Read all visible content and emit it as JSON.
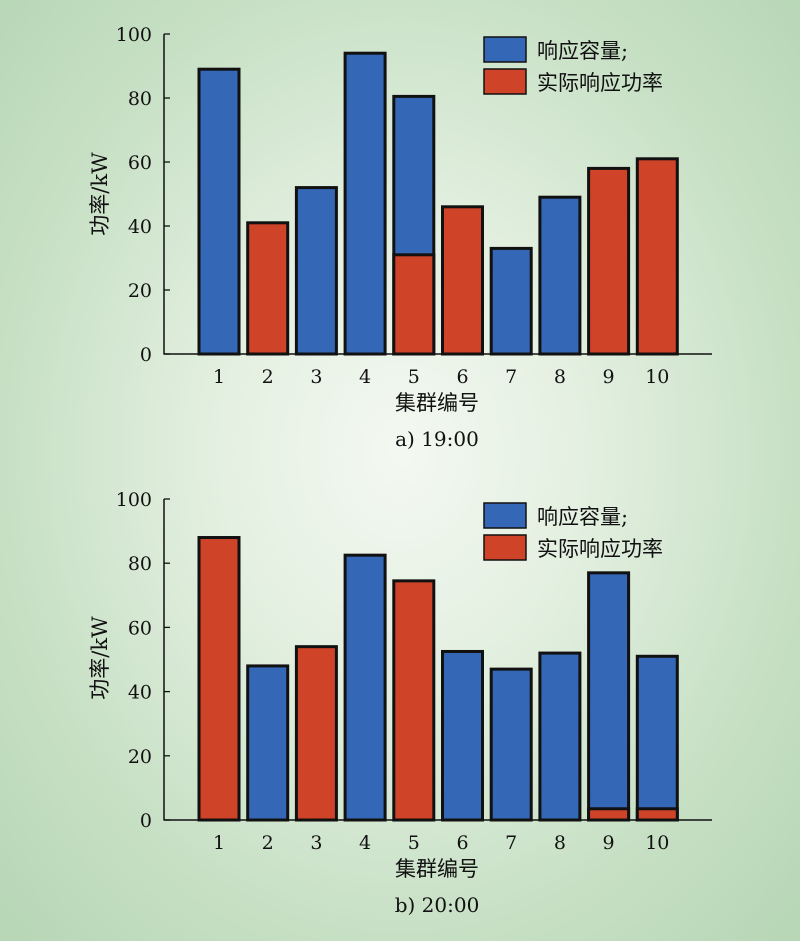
{
  "colors": {
    "capacity": "#3467b5",
    "actual": "#cf4428",
    "outline": "#111111"
  },
  "chart_data": [
    {
      "type": "bar",
      "caption": "a) 19:00",
      "xlabel": "集群编号",
      "ylabel": "功率/kW",
      "ylim": [
        0,
        100
      ],
      "yticks": [
        0,
        20,
        40,
        60,
        80,
        100
      ],
      "categories": [
        "1",
        "2",
        "3",
        "4",
        "5",
        "6",
        "7",
        "8",
        "9",
        "10"
      ],
      "series": [
        {
          "name": "响应容量;",
          "values": [
            89,
            null,
            52,
            94,
            80.5,
            null,
            33,
            49,
            null,
            null
          ]
        },
        {
          "name": "实际响应功率",
          "values": [
            null,
            41,
            null,
            null,
            31,
            46,
            null,
            null,
            58,
            61
          ]
        }
      ]
    },
    {
      "type": "bar",
      "caption": "b) 20:00",
      "xlabel": "集群编号",
      "ylabel": "功率/kW",
      "ylim": [
        0,
        100
      ],
      "yticks": [
        0,
        20,
        40,
        60,
        80,
        100
      ],
      "categories": [
        "1",
        "2",
        "3",
        "4",
        "5",
        "6",
        "7",
        "8",
        "9",
        "10"
      ],
      "series": [
        {
          "name": "响应容量;",
          "values": [
            null,
            48,
            null,
            82.5,
            null,
            52.5,
            47,
            52,
            77,
            51
          ]
        },
        {
          "name": "实际响应功率",
          "values": [
            88,
            null,
            54,
            null,
            74.5,
            null,
            null,
            null,
            3.5,
            3.5
          ]
        }
      ]
    }
  ]
}
